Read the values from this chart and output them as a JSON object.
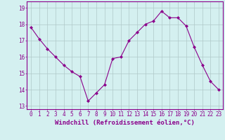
{
  "x": [
    0,
    1,
    2,
    3,
    4,
    5,
    6,
    7,
    8,
    9,
    10,
    11,
    12,
    13,
    14,
    15,
    16,
    17,
    18,
    19,
    20,
    21,
    22,
    23
  ],
  "y": [
    17.8,
    17.1,
    16.5,
    16.0,
    15.5,
    15.1,
    14.8,
    13.3,
    13.8,
    14.3,
    15.9,
    16.0,
    17.0,
    17.5,
    18.0,
    18.2,
    18.8,
    18.4,
    18.4,
    17.9,
    16.6,
    15.5,
    14.5,
    14.0
  ],
  "line_color": "#8b008b",
  "marker": "D",
  "marker_size": 2.0,
  "bg_color": "#d4f0f0",
  "grid_color": "#b0c8c8",
  "xlabel": "Windchill (Refroidissement éolien,°C)",
  "xlabel_color": "#8b008b",
  "ylabel_ticks": [
    13,
    14,
    15,
    16,
    17,
    18,
    19
  ],
  "ylim": [
    12.8,
    19.4
  ],
  "xlim": [
    -0.5,
    23.5
  ],
  "xticks": [
    0,
    1,
    2,
    3,
    4,
    5,
    6,
    7,
    8,
    9,
    10,
    11,
    12,
    13,
    14,
    15,
    16,
    17,
    18,
    19,
    20,
    21,
    22,
    23
  ],
  "tick_color": "#8b008b",
  "tick_label_fontsize": 5.5,
  "xlabel_fontsize": 6.5,
  "spine_color": "#8b008b"
}
